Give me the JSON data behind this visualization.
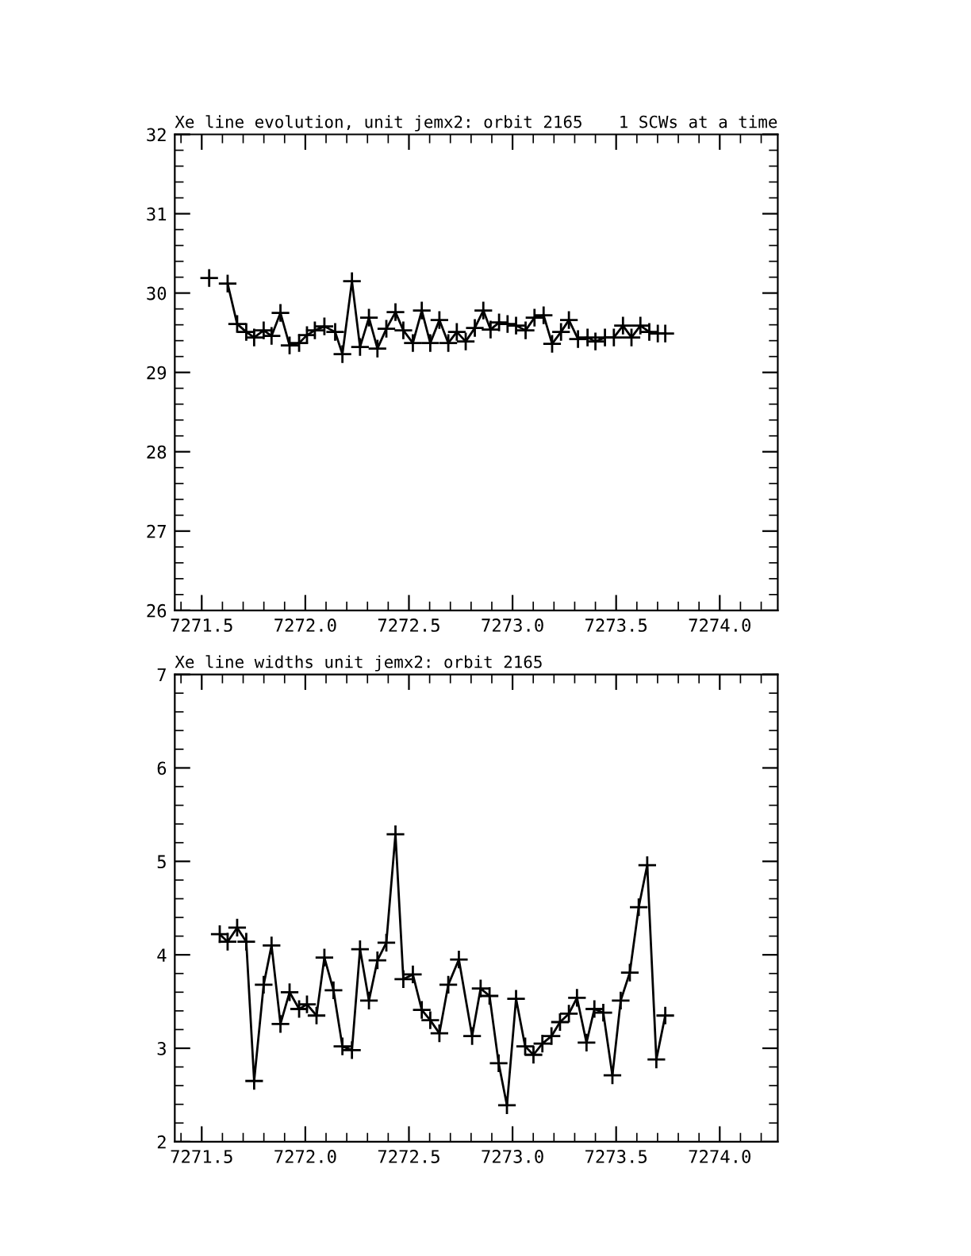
{
  "chart_data": [
    {
      "type": "line",
      "title": "Xe line evolution, unit jemx2: orbit 2165",
      "subtitle": "1 SCWs at a time",
      "marker": "cross",
      "line_style": "solid",
      "grid": false,
      "legend": false,
      "x": [
        7271.536,
        7271.587,
        7271.625,
        7271.671,
        7271.715,
        7271.753,
        7271.799,
        7271.837,
        7271.88,
        7271.924,
        7271.97,
        7272.008,
        7272.046,
        7272.092,
        7272.144,
        7272.179,
        7272.225,
        7272.264,
        7272.307,
        7272.348,
        7272.391,
        7272.435,
        7272.473,
        7272.519,
        7272.562,
        7272.603,
        7272.647,
        7272.69,
        7272.731,
        7272.774,
        7272.818,
        7272.859,
        7272.894,
        7272.935,
        7272.976,
        7273.017,
        7273.063,
        7273.106,
        7273.15,
        7273.191,
        7273.234,
        7273.272,
        7273.316,
        7273.362,
        7273.4,
        7273.446,
        7273.489,
        7273.533,
        7273.574,
        7273.617,
        7273.66,
        7273.701,
        7273.737
      ],
      "series": [
        {
          "color": "#000000",
          "values": [
            30.19,
            null,
            30.12,
            29.61,
            29.51,
            29.44,
            29.53,
            29.46,
            29.75,
            29.34,
            29.37,
            29.47,
            29.53,
            29.58,
            29.51,
            29.23,
            30.15,
            29.32,
            29.69,
            29.3,
            29.55,
            29.76,
            29.53,
            29.37,
            29.78,
            29.37,
            29.66,
            29.37,
            29.51,
            29.39,
            29.56,
            29.78,
            29.54,
            29.63,
            29.61,
            29.59,
            29.53,
            29.69,
            29.72,
            29.36,
            29.51,
            29.66,
            29.42,
            29.44,
            29.39,
            29.44,
            29.44,
            29.59,
            29.44,
            29.59,
            29.51,
            29.49,
            29.49
          ]
        }
      ],
      "xlim": [
        7271.37,
        7274.28
      ],
      "xticks": [
        {
          "value": 7271.5,
          "label": "7271.5"
        },
        {
          "value": 7272.0,
          "label": "7272.0"
        },
        {
          "value": 7272.5,
          "label": "7272.5"
        },
        {
          "value": 7273.0,
          "label": "7273.0"
        },
        {
          "value": 7273.5,
          "label": "7273.5"
        },
        {
          "value": 7274.0,
          "label": "7274.0"
        }
      ],
      "ylim": [
        26,
        32
      ],
      "yticks": [
        26,
        27,
        28,
        29,
        30,
        31,
        32
      ]
    },
    {
      "type": "line",
      "title": "Xe line widths unit jemx2: orbit 2165",
      "marker": "cross",
      "line_style": "solid",
      "grid": false,
      "legend": false,
      "x": [
        7271.587,
        7271.625,
        7271.671,
        7271.715,
        7271.753,
        7271.799,
        7271.837,
        7271.88,
        7271.924,
        7271.97,
        7272.008,
        7272.054,
        7272.092,
        7272.136,
        7272.179,
        7272.225,
        7272.264,
        7272.307,
        7272.348,
        7272.391,
        7272.435,
        7272.473,
        7272.519,
        7272.562,
        7272.603,
        7272.647,
        7272.69,
        7272.741,
        7272.805,
        7272.846,
        7272.889,
        7272.933,
        7272.973,
        7273.017,
        7273.061,
        7273.101,
        7273.144,
        7273.188,
        7273.229,
        7273.272,
        7273.311,
        7273.357,
        7273.395,
        7273.438,
        7273.482,
        7273.522,
        7273.566,
        7273.609,
        7273.65,
        7273.694,
        7273.737
      ],
      "series": [
        {
          "color": "#000000",
          "values": [
            4.22,
            4.14,
            4.29,
            4.14,
            2.65,
            3.68,
            4.1,
            3.26,
            3.6,
            3.42,
            3.47,
            3.35,
            3.97,
            3.62,
            3.02,
            2.98,
            4.06,
            3.51,
            3.94,
            4.13,
            5.29,
            3.74,
            3.79,
            3.41,
            3.3,
            3.16,
            3.68,
            3.95,
            3.13,
            3.64,
            3.56,
            2.84,
            2.39,
            3.53,
            3.02,
            2.93,
            3.05,
            3.13,
            3.28,
            3.37,
            3.54,
            3.06,
            3.42,
            3.38,
            2.71,
            3.51,
            3.81,
            4.51,
            4.96,
            2.88,
            3.35
          ]
        }
      ],
      "xlim": [
        7271.37,
        7274.28
      ],
      "xticks": [
        {
          "value": 7271.5,
          "label": "7271.5"
        },
        {
          "value": 7272.0,
          "label": "7272.0"
        },
        {
          "value": 7272.5,
          "label": "7272.5"
        },
        {
          "value": 7273.0,
          "label": "7273.0"
        },
        {
          "value": 7273.5,
          "label": "7273.5"
        },
        {
          "value": 7274.0,
          "label": "7274.0"
        }
      ],
      "ylim": [
        2,
        7
      ],
      "yticks": [
        2,
        3,
        4,
        5,
        6,
        7
      ]
    }
  ]
}
